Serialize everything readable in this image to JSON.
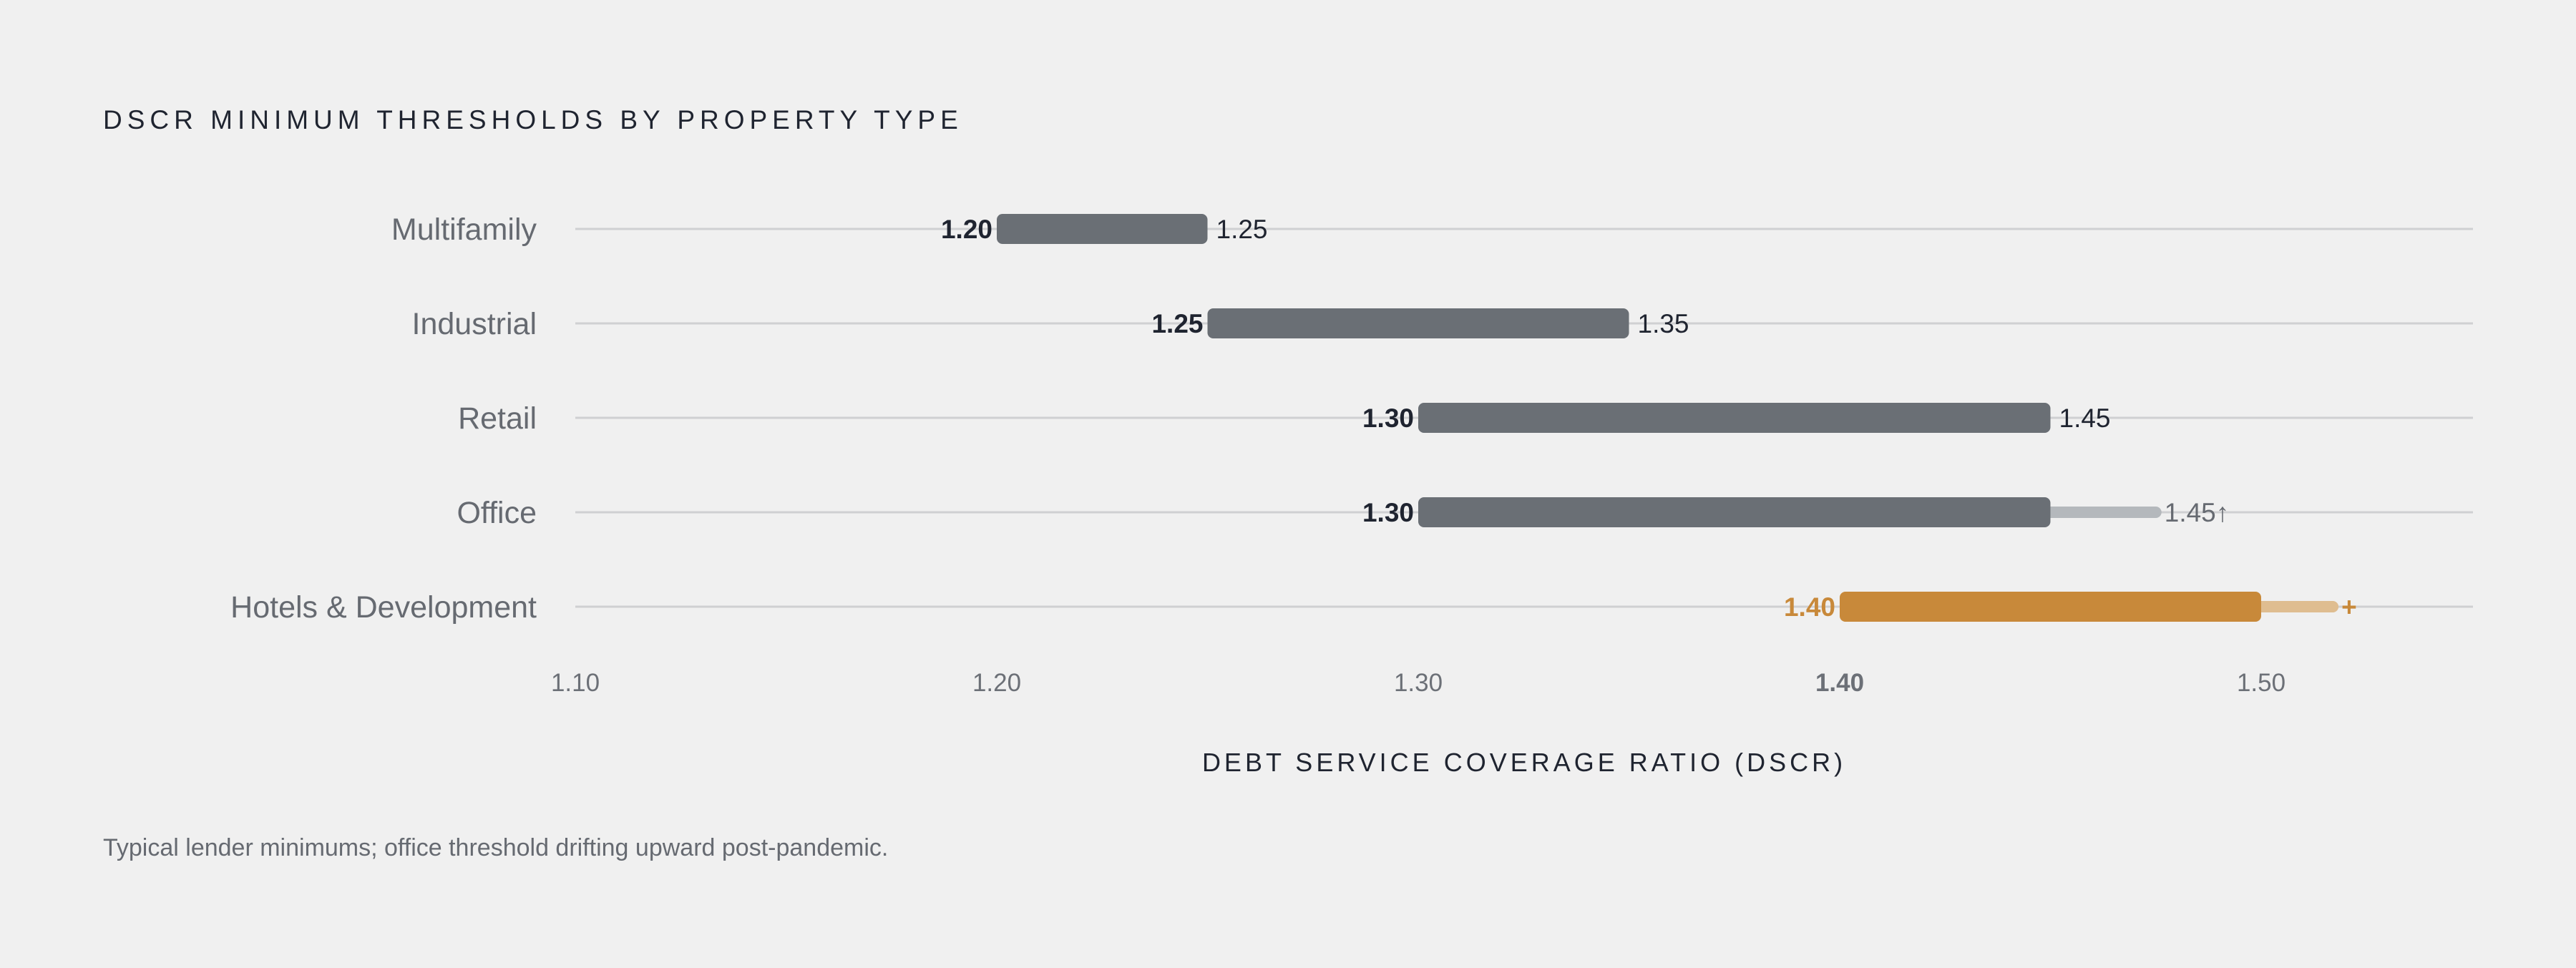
{
  "title": "DSCR MINIMUM THRESHOLDS BY PROPERTY TYPE",
  "caption": "Typical lender minimums; office threshold drifting upward post-pandemic.",
  "colors": {
    "background": "#f0f0f0",
    "bar": "#6a6f75",
    "accent": "#c8893a",
    "trend_gray": "#b4b8bc",
    "trend_accent": "#dfbd90",
    "grid": "#cfd0d2",
    "text_dark": "#1f2430",
    "text_muted": "#666a71"
  },
  "chart_data": {
    "type": "range-bar",
    "title": "DSCR MINIMUM THRESHOLDS BY PROPERTY TYPE",
    "xlabel": "DEBT SERVICE COVERAGE RATIO (DSCR)",
    "xlim": [
      1.1,
      1.55
    ],
    "ticks": [
      {
        "value": 1.1,
        "label": "1.10",
        "highlight": false
      },
      {
        "value": 1.2,
        "label": "1.20",
        "highlight": false
      },
      {
        "value": 1.3,
        "label": "1.30",
        "highlight": false
      },
      {
        "value": 1.4,
        "label": "1.40",
        "highlight": true
      },
      {
        "value": 1.5,
        "label": "1.50",
        "highlight": false
      }
    ],
    "series": [
      {
        "category": "Multifamily",
        "low": 1.2,
        "high": 1.25,
        "low_label": "1.20",
        "high_label": "1.25",
        "trend_to": null,
        "accent": false
      },
      {
        "category": "Industrial",
        "low": 1.25,
        "high": 1.35,
        "low_label": "1.25",
        "high_label": "1.35",
        "trend_to": null,
        "accent": false
      },
      {
        "category": "Retail",
        "low": 1.3,
        "high": 1.45,
        "low_label": "1.30",
        "high_label": "1.45",
        "trend_to": null,
        "accent": false
      },
      {
        "category": "Office",
        "low": 1.3,
        "high": 1.45,
        "low_label": "1.30",
        "high_label": "1.45↑",
        "trend_to": 1.475,
        "accent": false
      },
      {
        "category": "Hotels & Development",
        "low": 1.4,
        "high": 1.5,
        "low_label": "1.40",
        "high_label": "+",
        "trend_to": 1.517,
        "accent": true
      }
    ]
  }
}
